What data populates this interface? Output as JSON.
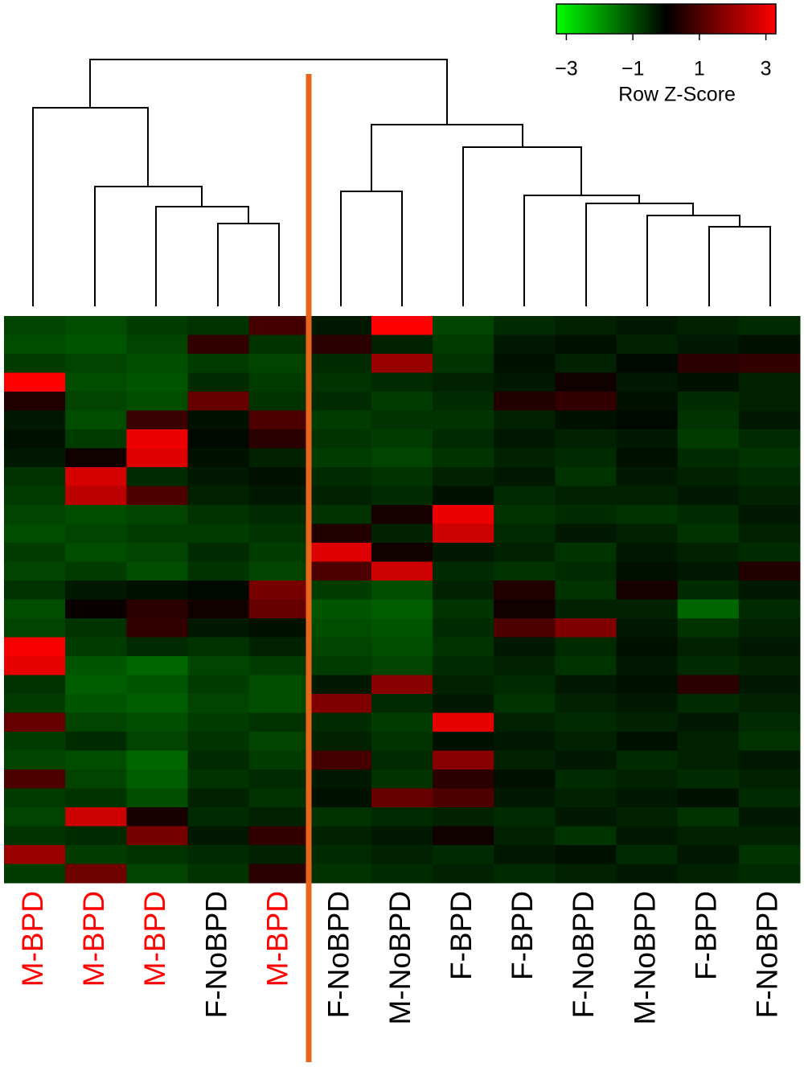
{
  "chart_data": {
    "type": "heatmap",
    "categories": [
      "M-BPD",
      "M-BPD",
      "M-BPD",
      "F-NoBPD",
      "M-BPD",
      "F-NoBPD",
      "M-NoBPD",
      "F-BPD",
      "F-BPD",
      "F-NoBPD",
      "M-NoBPD",
      "F-BPD",
      "F-NoBPD"
    ],
    "label_colors": [
      "#ff0000",
      "#ff0000",
      "#ff0000",
      "#000000",
      "#ff0000",
      "#000000",
      "#000000",
      "#000000",
      "#000000",
      "#000000",
      "#000000",
      "#000000",
      "#000000"
    ],
    "colors": [
      "#00ff00",
      "#000000",
      "#ff0000"
    ],
    "zlim": [
      -3.3,
      3.3
    ],
    "zticks": [
      {
        "value": -3,
        "label": "−3"
      },
      {
        "value": -1,
        "label": "−1"
      },
      1,
      3
    ],
    "legend_title": "Row Z-Score",
    "values": [
      [
        -0.8,
        -0.9,
        -0.7,
        -0.6,
        0.8,
        -0.3,
        3.0,
        -0.8,
        -0.5,
        -0.4,
        -0.3,
        -0.4,
        -0.5
      ],
      [
        -0.9,
        -1.0,
        -0.8,
        0.6,
        -0.6,
        0.5,
        -0.4,
        -0.7,
        -0.3,
        -0.2,
        -0.4,
        -0.3,
        -0.2
      ],
      [
        -0.7,
        -0.8,
        -0.9,
        -0.7,
        -0.8,
        -0.5,
        1.8,
        -0.6,
        -0.2,
        -0.4,
        -0.1,
        0.5,
        0.6
      ],
      [
        3.0,
        -0.9,
        -1.0,
        -0.5,
        -0.7,
        -0.6,
        -0.5,
        -0.4,
        -0.3,
        0.2,
        -0.3,
        -0.2,
        -0.4
      ],
      [
        0.4,
        -0.8,
        -0.9,
        1.2,
        -0.6,
        -0.5,
        -0.7,
        -0.5,
        0.4,
        0.6,
        -0.2,
        -0.5,
        -0.4
      ],
      [
        -0.3,
        -0.9,
        0.7,
        -0.2,
        0.9,
        -0.7,
        -0.6,
        -0.6,
        -0.4,
        -0.2,
        -0.1,
        -0.6,
        -0.3
      ],
      [
        -0.2,
        -0.7,
        2.8,
        -0.1,
        0.5,
        -0.6,
        -0.7,
        -0.5,
        -0.3,
        -0.4,
        -0.3,
        -0.7,
        -0.5
      ],
      [
        -0.3,
        0.2,
        2.6,
        -0.2,
        -0.4,
        -0.7,
        -0.8,
        -0.6,
        -0.4,
        -0.5,
        -0.2,
        -0.5,
        -0.6
      ],
      [
        -0.6,
        2.5,
        -0.5,
        -0.3,
        -0.2,
        -0.5,
        -0.6,
        -0.4,
        -0.3,
        -0.6,
        -0.3,
        -0.4,
        -0.5
      ],
      [
        -0.7,
        2.2,
        0.9,
        -0.4,
        -0.3,
        -0.4,
        -0.5,
        -0.2,
        -0.5,
        -0.4,
        -0.4,
        -0.3,
        -0.4
      ],
      [
        -0.8,
        -0.9,
        -0.8,
        -0.6,
        -0.5,
        -0.6,
        0.3,
        2.8,
        -0.6,
        -0.5,
        -0.6,
        -0.5,
        -0.3
      ],
      [
        -0.9,
        -0.8,
        -0.7,
        -0.7,
        -0.6,
        0.4,
        -0.4,
        2.4,
        -0.5,
        -0.3,
        -0.4,
        -0.6,
        -0.4
      ],
      [
        -0.7,
        -0.9,
        -0.8,
        -0.5,
        -0.7,
        2.6,
        0.2,
        -0.3,
        -0.4,
        -0.6,
        -0.3,
        -0.4,
        -0.5
      ],
      [
        -0.8,
        -0.7,
        -0.9,
        -0.6,
        -0.8,
        0.9,
        2.4,
        -0.5,
        -0.6,
        -0.5,
        -0.2,
        -0.3,
        0.4
      ],
      [
        -0.6,
        -0.3,
        -0.2,
        -0.1,
        1.4,
        -0.7,
        -0.9,
        -0.4,
        0.4,
        -0.6,
        0.3,
        -0.5,
        -0.3
      ],
      [
        -0.9,
        0.1,
        0.5,
        0.2,
        1.2,
        -1.0,
        -1.1,
        -0.6,
        0.2,
        -0.4,
        -0.4,
        -1.2,
        -0.5
      ],
      [
        -0.8,
        -0.6,
        0.6,
        -0.3,
        -0.2,
        -0.9,
        -1.0,
        -0.5,
        0.9,
        1.5,
        -0.3,
        -0.6,
        -0.4
      ],
      [
        2.9,
        -0.7,
        -0.5,
        -0.6,
        -0.4,
        -0.8,
        -0.9,
        -0.6,
        -0.3,
        -0.5,
        -0.2,
        -0.4,
        -0.3
      ],
      [
        2.7,
        -1.0,
        -1.2,
        -0.8,
        -0.7,
        -0.7,
        -0.8,
        -0.5,
        -0.4,
        -0.6,
        -0.3,
        -0.5,
        -0.4
      ],
      [
        -0.6,
        -1.1,
        -1.0,
        -0.7,
        -0.9,
        -0.3,
        1.6,
        -0.4,
        -0.5,
        -0.3,
        -0.2,
        0.5,
        -0.3
      ],
      [
        -0.7,
        -1.0,
        -1.1,
        -0.8,
        -0.9,
        1.5,
        -0.5,
        -0.3,
        -0.6,
        -0.4,
        -0.3,
        -0.5,
        -0.4
      ],
      [
        1.2,
        -0.8,
        -0.9,
        -0.7,
        -0.6,
        -0.5,
        -0.7,
        2.7,
        -0.4,
        -0.5,
        -0.4,
        -0.3,
        -0.5
      ],
      [
        -0.7,
        -0.5,
        -0.8,
        -0.6,
        -0.8,
        -0.4,
        -0.6,
        -0.2,
        -0.3,
        -0.4,
        -0.2,
        -0.4,
        -0.6
      ],
      [
        -0.8,
        -0.9,
        -1.2,
        -0.5,
        -0.7,
        0.8,
        -0.5,
        1.6,
        -0.4,
        -0.3,
        -0.5,
        -0.4,
        -0.3
      ],
      [
        0.9,
        -0.8,
        -1.1,
        -0.6,
        -0.5,
        -0.3,
        -0.6,
        0.5,
        -0.2,
        -0.5,
        -0.4,
        -0.5,
        -0.4
      ],
      [
        -0.7,
        -0.6,
        -0.9,
        -0.4,
        -0.6,
        -0.2,
        1.2,
        0.9,
        -0.3,
        -0.4,
        -0.3,
        -0.2,
        -0.5
      ],
      [
        -0.8,
        2.4,
        0.3,
        -0.5,
        -0.4,
        -0.6,
        -0.5,
        -0.4,
        -0.5,
        -0.3,
        -0.4,
        -0.6,
        -0.3
      ],
      [
        -0.6,
        -0.5,
        1.4,
        -0.3,
        0.6,
        -0.4,
        -0.3,
        0.2,
        -0.4,
        -0.6,
        -0.3,
        -0.4,
        -0.4
      ],
      [
        1.8,
        -0.7,
        -0.6,
        -0.5,
        -0.4,
        -0.5,
        -0.4,
        -0.5,
        -0.3,
        -0.2,
        -0.5,
        -0.3,
        -0.6
      ],
      [
        -0.7,
        1.3,
        -0.8,
        -0.6,
        0.5,
        -0.6,
        -0.5,
        -0.4,
        -0.5,
        -0.4,
        -0.3,
        -0.4,
        -0.5
      ]
    ]
  }
}
